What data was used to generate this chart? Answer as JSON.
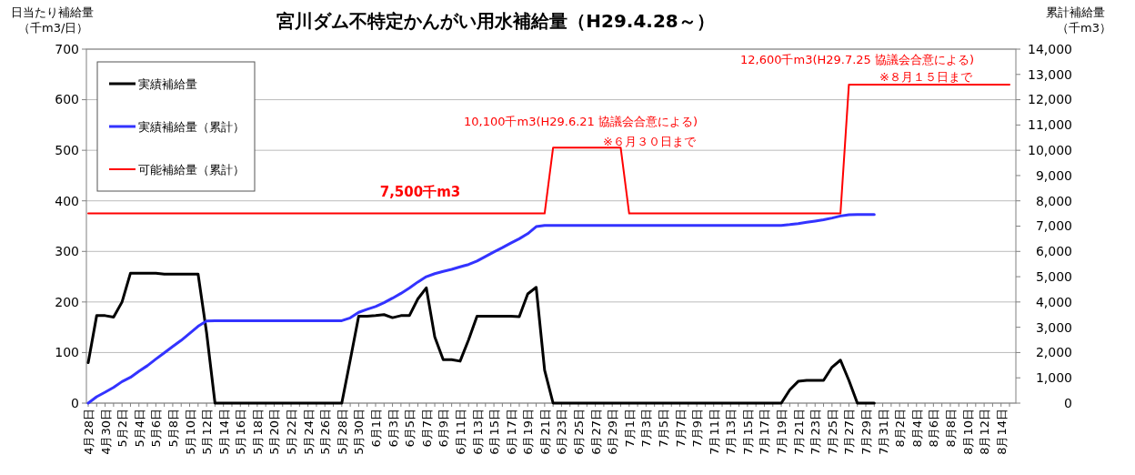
{
  "chart_data": {
    "type": "line",
    "title": "宮川ダム不特定かんがい用水補給量（H29.4.28～）",
    "ylabel": "日当たり補給量（千m3/日）",
    "y2label": "累計補給量（千m3）",
    "categories": [
      "4月28日",
      null,
      "4月30日",
      null,
      "5月2日",
      null,
      "5月4日",
      null,
      "5月6日",
      null,
      "5月8日",
      null,
      "5月10日",
      null,
      "5月12日",
      null,
      "5月14日",
      null,
      "5月16日",
      null,
      "5月18日",
      null,
      "5月20日",
      null,
      "5月22日",
      null,
      "5月24日",
      null,
      "5月26日",
      null,
      "5月28日",
      null,
      "5月30日",
      null,
      "6月1日",
      null,
      "6月3日",
      null,
      "6月5日",
      null,
      "6月7日",
      null,
      "6月9日",
      null,
      "6月11日",
      null,
      "6月13日",
      null,
      "6月15日",
      null,
      "6月17日",
      null,
      "6月19日",
      null,
      "6月21日",
      null,
      "6月23日",
      null,
      "6月25日",
      null,
      "6月27日",
      null,
      "6月29日",
      null,
      "7月1日",
      null,
      "7月3日",
      null,
      "7月5日",
      null,
      "7月7日",
      null,
      "7月9日",
      null,
      "7月11日",
      null,
      "7月13日",
      null,
      "7月15日",
      null,
      "7月17日",
      null,
      "7月19日",
      null,
      "7月21日",
      null,
      "7月23日",
      null,
      "7月25日",
      null,
      "7月27日",
      null,
      "7月29日",
      null,
      "7月31日",
      null,
      "8月2日",
      null,
      "8月4日",
      null,
      "8月6日",
      null,
      "8月8日",
      null,
      "8月10日",
      null,
      "8月12日",
      null,
      "8月14日",
      null
    ],
    "series": [
      {
        "name": "実績補給量",
        "color": "#000000",
        "values": [
          80,
          173,
          173,
          170,
          200,
          257,
          257,
          257,
          257,
          255,
          255,
          255,
          255,
          255,
          140,
          0,
          0,
          0,
          0,
          0,
          0,
          0,
          0,
          0,
          0,
          0,
          0,
          0,
          0,
          0,
          0,
          85,
          172,
          172,
          173,
          175,
          169,
          173,
          173,
          206,
          228,
          131,
          86,
          86,
          83,
          125,
          172,
          172,
          172,
          172,
          172,
          171,
          216,
          229,
          65,
          0,
          0,
          0,
          0,
          0,
          0,
          0,
          0,
          0,
          0,
          0,
          0,
          0,
          0,
          0,
          0,
          0,
          0,
          0,
          0,
          0,
          0,
          0,
          0,
          0,
          0,
          0,
          0,
          26,
          43,
          45,
          45,
          45,
          71,
          85,
          45,
          0,
          0,
          0,
          null,
          null,
          null,
          null,
          null,
          null,
          null,
          null,
          null,
          null,
          null,
          null,
          null,
          null,
          null,
          null
        ]
      },
      {
        "name": "実績補給量（累計）",
        "color": "#3333ff",
        "axis": "y2",
        "values": [
          0,
          250,
          430,
          620,
          850,
          1020,
          1260,
          1480,
          1740,
          1990,
          2240,
          2480,
          2760,
          3040,
          3250,
          3260,
          3260,
          3260,
          3260,
          3260,
          3260,
          3260,
          3260,
          3260,
          3260,
          3260,
          3260,
          3260,
          3260,
          3260,
          3260,
          3370,
          3590,
          3710,
          3820,
          3970,
          4150,
          4340,
          4550,
          4790,
          5000,
          5120,
          5210,
          5290,
          5390,
          5480,
          5620,
          5800,
          5980,
          6150,
          6330,
          6500,
          6700,
          6980,
          7030,
          7030,
          7030,
          7030,
          7030,
          7030,
          7030,
          7030,
          7030,
          7030,
          7030,
          7030,
          7030,
          7030,
          7030,
          7030,
          7030,
          7030,
          7030,
          7030,
          7030,
          7030,
          7030,
          7030,
          7030,
          7030,
          7030,
          7030,
          7030,
          7060,
          7100,
          7150,
          7200,
          7250,
          7320,
          7400,
          7450,
          7460,
          7460,
          7460,
          null,
          null,
          null,
          null,
          null,
          null,
          null,
          null,
          null,
          null,
          null,
          null,
          null,
          null,
          null,
          null
        ]
      },
      {
        "name": "可能補給量（累計）",
        "color": "#ff0000",
        "axis": "y2",
        "values": [
          7500,
          7500,
          7500,
          7500,
          7500,
          7500,
          7500,
          7500,
          7500,
          7500,
          7500,
          7500,
          7500,
          7500,
          7500,
          7500,
          7500,
          7500,
          7500,
          7500,
          7500,
          7500,
          7500,
          7500,
          7500,
          7500,
          7500,
          7500,
          7500,
          7500,
          7500,
          7500,
          7500,
          7500,
          7500,
          7500,
          7500,
          7500,
          7500,
          7500,
          7500,
          7500,
          7500,
          7500,
          7500,
          7500,
          7500,
          7500,
          7500,
          7500,
          7500,
          7500,
          7500,
          7500,
          7500,
          10100,
          10100,
          10100,
          10100,
          10100,
          10100,
          10100,
          10100,
          10100,
          7500,
          7500,
          7500,
          7500,
          7500,
          7500,
          7500,
          7500,
          7500,
          7500,
          7500,
          7500,
          7500,
          7500,
          7500,
          7500,
          7500,
          7500,
          7500,
          7500,
          7500,
          7500,
          7500,
          7500,
          7500,
          7500,
          12600,
          12600,
          12600,
          12600,
          12600,
          12600,
          12600,
          12600,
          12600,
          12600,
          12600,
          12600,
          12600,
          12600,
          12600,
          12600,
          12600,
          12600,
          12600,
          12600
        ]
      }
    ],
    "ylim": [
      0,
      700
    ],
    "yticks": [
      0,
      100,
      200,
      300,
      400,
      500,
      600,
      700
    ],
    "y2lim": [
      0,
      14000
    ],
    "y2ticks": [
      {
        "value": 0,
        "label": "0"
      },
      {
        "value": 1000,
        "label": "1,000"
      },
      {
        "value": 2000,
        "label": "2,000"
      },
      {
        "value": 3000,
        "label": "3,000"
      },
      {
        "value": 4000,
        "label": "4,000"
      },
      {
        "value": 5000,
        "label": "5,000"
      },
      {
        "value": 6000,
        "label": "6,000"
      },
      {
        "value": 7000,
        "label": "7,000"
      },
      {
        "value": 8000,
        "label": "8,000"
      },
      {
        "value": 9000,
        "label": "9,000"
      },
      {
        "value": 10000,
        "label": "10,000"
      },
      {
        "value": 11000,
        "label": "11,000"
      },
      {
        "value": 12000,
        "label": "12,000"
      },
      {
        "value": 13000,
        "label": "13,000"
      },
      {
        "value": 14000,
        "label": "14,000"
      }
    ],
    "grid": "y",
    "legend": "top left",
    "marker": "none",
    "line_style": "solid",
    "annotations": [
      "7,500千m3",
      "10,100千m3(H29.6.21 協議会合意による)",
      "※６月３０日まで",
      "12,600千m3(H29.7.25 協議会合意による)",
      "※８月１５日まで"
    ]
  }
}
